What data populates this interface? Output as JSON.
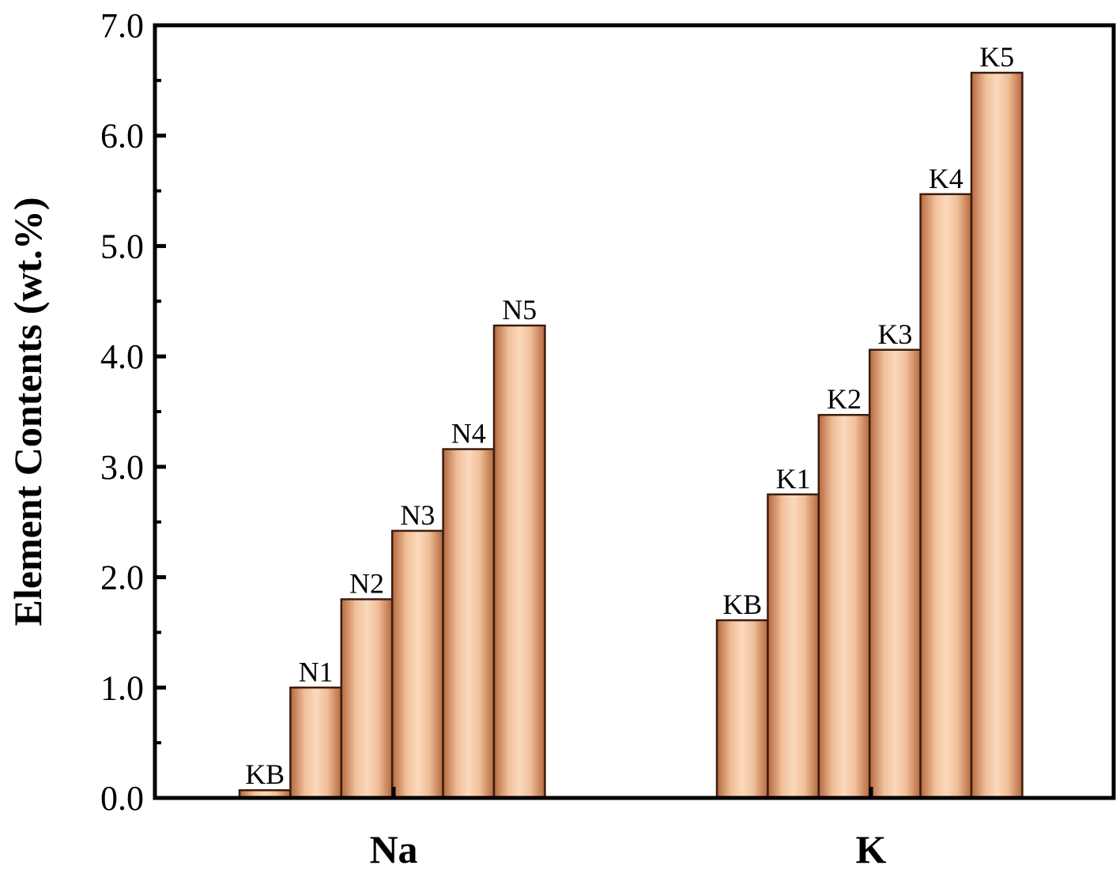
{
  "chart_data": {
    "type": "bar",
    "ylabel": "Element Contents (wt.%)",
    "xlabel": "",
    "ylim": [
      0,
      7.0
    ],
    "yticks": [
      "0.0",
      "1.0",
      "2.0",
      "3.0",
      "4.0",
      "5.0",
      "6.0",
      "7.0"
    ],
    "categories": [
      "Na",
      "K"
    ],
    "groups": [
      {
        "category": "Na",
        "bars": [
          {
            "label": "KB",
            "value": 0.07
          },
          {
            "label": "N1",
            "value": 1.0
          },
          {
            "label": "N2",
            "value": 1.8
          },
          {
            "label": "N3",
            "value": 2.42
          },
          {
            "label": "N4",
            "value": 3.16
          },
          {
            "label": "N5",
            "value": 4.28
          }
        ]
      },
      {
        "category": "K",
        "bars": [
          {
            "label": "KB",
            "value": 1.61
          },
          {
            "label": "K1",
            "value": 2.75
          },
          {
            "label": "K2",
            "value": 3.47
          },
          {
            "label": "K3",
            "value": 4.06
          },
          {
            "label": "K4",
            "value": 5.47
          },
          {
            "label": "K5",
            "value": 6.57
          }
        ]
      }
    ],
    "legend": "none",
    "grid": false,
    "colors": {
      "bar_edge": "#9a5a34",
      "bar_light": "#fbd9bd",
      "bar_dark": "#b5683f"
    }
  }
}
